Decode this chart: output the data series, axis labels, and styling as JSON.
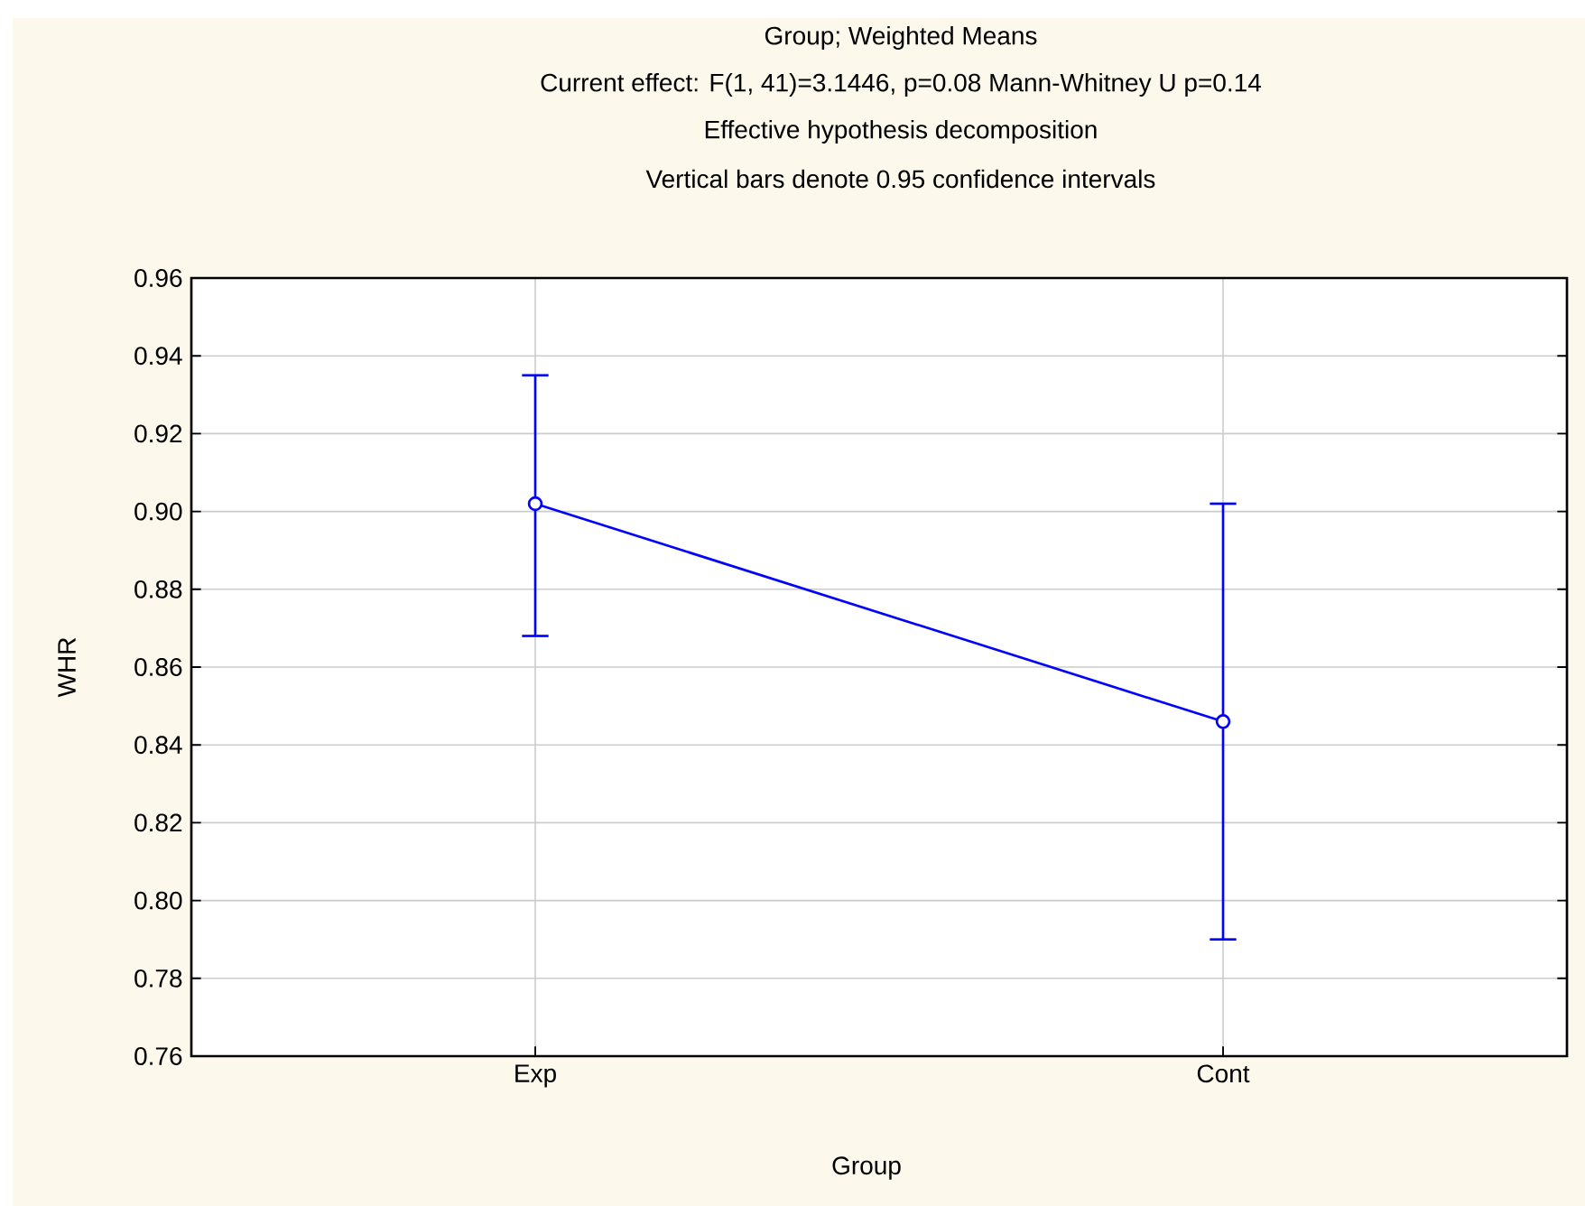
{
  "chart_data": {
    "type": "line",
    "title": "Group; Weighted Means",
    "subtitle": "Current effect: F(1, 41)=3.1446, p=0.08 Mann-Whitney U p=0.14",
    "annotations": [
      "Effective hypothesis decomposition",
      "Vertical bars denote 0.95 confidence intervals"
    ],
    "xlabel": "Group",
    "ylabel": "WHR",
    "categories": [
      "Exp",
      "Cont"
    ],
    "series": [
      {
        "color": "#0000ff",
        "values": [
          0.902,
          0.846
        ],
        "errors": [
          [
            0.868,
            0.935
          ],
          [
            0.79,
            0.902
          ]
        ]
      }
    ],
    "ylim": [
      0.76,
      0.96
    ],
    "yticks": [
      {
        "value": 0.76,
        "label": "0.76"
      },
      {
        "value": 0.78,
        "label": "0.78"
      },
      {
        "value": 0.8,
        "label": "0.80"
      },
      {
        "value": 0.82,
        "label": "0.82"
      },
      {
        "value": 0.84,
        "label": "0.84"
      },
      {
        "value": 0.86,
        "label": "0.86"
      },
      {
        "value": 0.88,
        "label": "0.88"
      },
      {
        "value": 0.9,
        "label": "0.90"
      },
      {
        "value": 0.92,
        "label": "0.92"
      },
      {
        "value": 0.94,
        "label": "0.94"
      },
      {
        "value": 0.96,
        "label": "0.96"
      }
    ],
    "grid": true,
    "marker": "circle",
    "line_style": "solid"
  }
}
